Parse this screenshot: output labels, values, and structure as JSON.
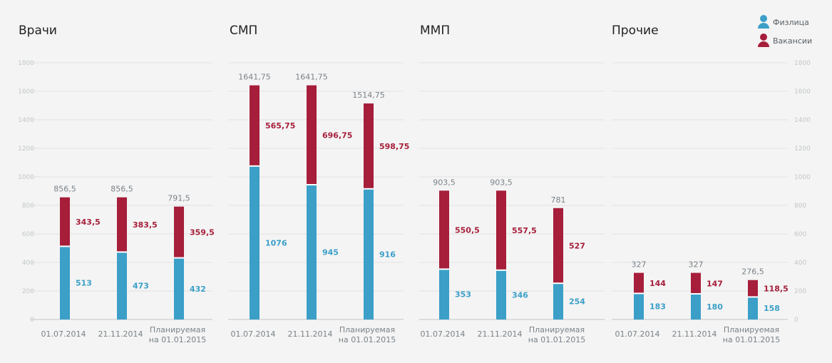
{
  "legend": {
    "items": [
      {
        "name": "Физлица",
        "color": "#3b9fc8",
        "icon": "person-icon"
      },
      {
        "name": "Вакансии",
        "color": "#a61e3a",
        "icon": "person-icon"
      }
    ]
  },
  "colors": {
    "filled": "#3b9fc8",
    "vacant": "#a61e3a",
    "total": "#7a8288",
    "axis": "#c2c6c9",
    "grid": "#e2e2e2",
    "title": "#222222",
    "category": "#7a8288"
  },
  "chart_data": [
    {
      "type": "bar",
      "title": "Врачи",
      "stacked": true,
      "categories": [
        "01.07.2014",
        "21.11.2014",
        "Планируемая на 01.01.2015"
      ],
      "series": [
        {
          "name": "Физлица",
          "values": [
            513,
            473,
            432
          ]
        },
        {
          "name": "Вакансии",
          "values": [
            343.5,
            383.5,
            359.5
          ]
        }
      ],
      "totals": [
        856.5,
        856.5,
        791.5
      ],
      "value_labels": {
        "filled": [
          "513",
          "473",
          "432"
        ],
        "vacant": [
          "343,5",
          "383,5",
          "359,5"
        ],
        "totals": [
          "856,5",
          "856,5",
          "791,5"
        ]
      },
      "ylim": [
        0,
        1800
      ],
      "yticks": [
        0,
        200,
        400,
        600,
        800,
        1000,
        1200,
        1400,
        1600,
        1800
      ],
      "grid": true
    },
    {
      "type": "bar",
      "title": "СМП",
      "stacked": true,
      "categories": [
        "01.07.2014",
        "21.11.2014",
        "Планируемая на 01.01.2015"
      ],
      "series": [
        {
          "name": "Физлица",
          "values": [
            1076,
            945,
            916
          ]
        },
        {
          "name": "Вакансии",
          "values": [
            565.75,
            696.75,
            598.75
          ]
        }
      ],
      "totals": [
        1641.75,
        1641.75,
        1514.75
      ],
      "value_labels": {
        "filled": [
          "1076",
          "945",
          "916"
        ],
        "vacant": [
          "565,75",
          "696,75",
          "598,75"
        ],
        "totals": [
          "1641,75",
          "1641,75",
          "1514,75"
        ]
      },
      "ylim": [
        0,
        1800
      ],
      "grid": true
    },
    {
      "type": "bar",
      "title": "ММП",
      "stacked": true,
      "categories": [
        "01.07.2014",
        "21.11.2014",
        "Планируемая на 01.01.2015"
      ],
      "series": [
        {
          "name": "Физлица",
          "values": [
            353,
            346,
            254
          ]
        },
        {
          "name": "Вакансии",
          "values": [
            550.5,
            557.5,
            527
          ]
        }
      ],
      "totals": [
        903.5,
        903.5,
        781
      ],
      "value_labels": {
        "filled": [
          "353",
          "346",
          "254"
        ],
        "vacant": [
          "550,5",
          "557,5",
          "527"
        ],
        "totals": [
          "903,5",
          "903,5",
          "781"
        ]
      },
      "ylim": [
        0,
        1800
      ],
      "grid": true
    },
    {
      "type": "bar",
      "title": "Прочие",
      "stacked": true,
      "categories": [
        "01.07.2014",
        "21.11.2014",
        "Планируемая на 01.01.2015"
      ],
      "series": [
        {
          "name": "Физлица",
          "values": [
            183,
            180,
            158
          ]
        },
        {
          "name": "Вакансии",
          "values": [
            144,
            147,
            118.5
          ]
        }
      ],
      "totals": [
        327,
        327,
        276.5
      ],
      "value_labels": {
        "filled": [
          "183",
          "180",
          "158"
        ],
        "vacant": [
          "144",
          "147",
          "118,5"
        ],
        "totals": [
          "327",
          "327",
          "276,5"
        ]
      },
      "ylim": [
        0,
        1800
      ],
      "yticks": [
        0,
        200,
        400,
        600,
        800,
        1000,
        1200,
        1400,
        1600,
        1800
      ],
      "grid": true
    }
  ]
}
